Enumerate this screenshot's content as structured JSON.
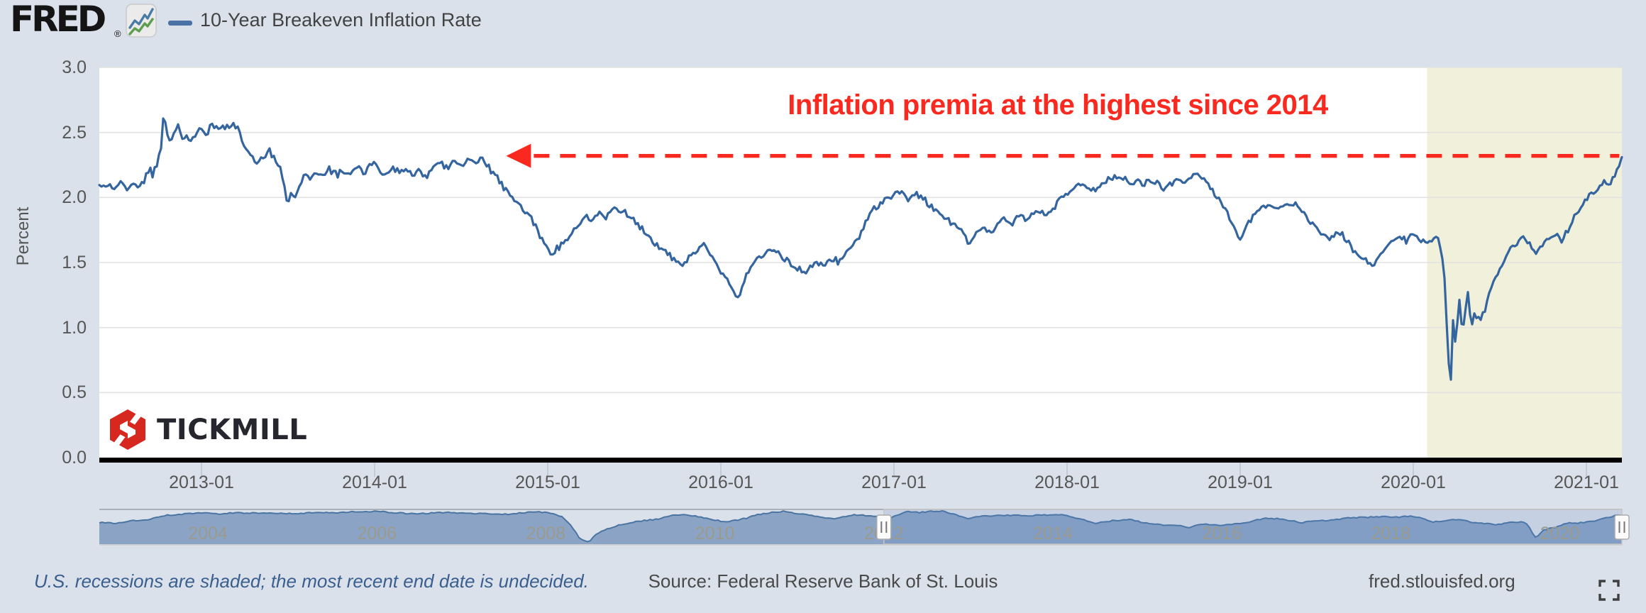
{
  "page": {
    "background": "#dae1ea"
  },
  "header": {
    "logo_text": "FRED",
    "logo_registered": "®",
    "series_legend": {
      "label": "10-Year Breakeven Inflation Rate",
      "color": "#4a72a6"
    }
  },
  "annotation": {
    "text": "Inflation premia at the highest since 2014",
    "color": "#fa291f"
  },
  "watermark": {
    "text": "TICKMILL",
    "icon_color": "#d6281e",
    "text_color": "#26262e"
  },
  "footer": {
    "recession_note": "U.S. recessions are shaded; the most recent end date is undecided.",
    "source": "Source: Federal Reserve Bank of St. Louis",
    "site": "fred.stlouisfed.org"
  },
  "chart_data": {
    "type": "line",
    "title": "10-Year Breakeven Inflation Rate",
    "ylabel": "Percent",
    "ylim": [
      0.0,
      3.0
    ],
    "y_ticks": [
      "0.0",
      "0.5",
      "1.0",
      "1.5",
      "2.0",
      "2.5",
      "3.0"
    ],
    "x_tick_years": [
      2013,
      2014,
      2015,
      2016,
      2017,
      2018,
      2019,
      2020,
      2021
    ],
    "x_tick_labels": [
      "2013-01",
      "2014-01",
      "2015-01",
      "2016-01",
      "2017-01",
      "2018-01",
      "2019-01",
      "2020-01",
      "2021-01"
    ],
    "x_range": [
      2012.41,
      2021.21
    ],
    "grid": true,
    "line_color": "#35659e",
    "recession_shading": {
      "start": 2020.08,
      "end": 2021.21,
      "color": "#f1f0da"
    },
    "reference_line": {
      "value": 2.32,
      "from": 2014.76,
      "to": 2021.19,
      "style": "dashed",
      "arrow": "left",
      "color": "#fa291f"
    },
    "points": [
      [
        2012.41,
        2.08
      ],
      [
        2012.45,
        2.1
      ],
      [
        2012.49,
        2.06
      ],
      [
        2012.53,
        2.11
      ],
      [
        2012.57,
        2.06
      ],
      [
        2012.61,
        2.12
      ],
      [
        2012.64,
        2.07
      ],
      [
        2012.67,
        2.13
      ],
      [
        2012.7,
        2.23
      ],
      [
        2012.72,
        2.17
      ],
      [
        2012.745,
        2.27
      ],
      [
        2012.765,
        2.38
      ],
      [
        2012.78,
        2.63
      ],
      [
        2012.8,
        2.5
      ],
      [
        2012.82,
        2.41
      ],
      [
        2012.845,
        2.53
      ],
      [
        2012.87,
        2.55
      ],
      [
        2012.89,
        2.42
      ],
      [
        2012.91,
        2.47
      ],
      [
        2012.935,
        2.43
      ],
      [
        2012.96,
        2.47
      ],
      [
        2012.98,
        2.5
      ],
      [
        2013.0,
        2.52
      ],
      [
        2013.03,
        2.49
      ],
      [
        2013.06,
        2.55
      ],
      [
        2013.09,
        2.52
      ],
      [
        2013.12,
        2.56
      ],
      [
        2013.15,
        2.54
      ],
      [
        2013.18,
        2.57
      ],
      [
        2013.21,
        2.52
      ],
      [
        2013.24,
        2.42
      ],
      [
        2013.27,
        2.35
      ],
      [
        2013.3,
        2.3
      ],
      [
        2013.33,
        2.27
      ],
      [
        2013.36,
        2.33
      ],
      [
        2013.39,
        2.36
      ],
      [
        2013.42,
        2.3
      ],
      [
        2013.45,
        2.23
      ],
      [
        2013.475,
        2.12
      ],
      [
        2013.5,
        1.92
      ],
      [
        2013.52,
        2.06
      ],
      [
        2013.54,
        2.0
      ],
      [
        2013.57,
        2.12
      ],
      [
        2013.6,
        2.18
      ],
      [
        2013.63,
        2.14
      ],
      [
        2013.66,
        2.2
      ],
      [
        2013.7,
        2.16
      ],
      [
        2013.74,
        2.22
      ],
      [
        2013.78,
        2.17
      ],
      [
        2013.82,
        2.21
      ],
      [
        2013.86,
        2.17
      ],
      [
        2013.9,
        2.24
      ],
      [
        2013.94,
        2.19
      ],
      [
        2013.98,
        2.26
      ],
      [
        2014.02,
        2.23
      ],
      [
        2014.06,
        2.18
      ],
      [
        2014.1,
        2.24
      ],
      [
        2014.14,
        2.19
      ],
      [
        2014.18,
        2.23
      ],
      [
        2014.22,
        2.17
      ],
      [
        2014.26,
        2.21
      ],
      [
        2014.3,
        2.16
      ],
      [
        2014.34,
        2.22
      ],
      [
        2014.38,
        2.27
      ],
      [
        2014.42,
        2.23
      ],
      [
        2014.46,
        2.28
      ],
      [
        2014.5,
        2.24
      ],
      [
        2014.54,
        2.29
      ],
      [
        2014.58,
        2.26
      ],
      [
        2014.62,
        2.3
      ],
      [
        2014.66,
        2.24
      ],
      [
        2014.7,
        2.16
      ],
      [
        2014.74,
        2.09
      ],
      [
        2014.78,
        2.03
      ],
      [
        2014.82,
        1.97
      ],
      [
        2014.86,
        1.9
      ],
      [
        2014.9,
        1.87
      ],
      [
        2014.94,
        1.74
      ],
      [
        2014.98,
        1.65
      ],
      [
        2015.02,
        1.57
      ],
      [
        2015.06,
        1.62
      ],
      [
        2015.1,
        1.66
      ],
      [
        2015.14,
        1.72
      ],
      [
        2015.18,
        1.8
      ],
      [
        2015.22,
        1.86
      ],
      [
        2015.26,
        1.83
      ],
      [
        2015.3,
        1.89
      ],
      [
        2015.34,
        1.86
      ],
      [
        2015.38,
        1.92
      ],
      [
        2015.42,
        1.89
      ],
      [
        2015.46,
        1.87
      ],
      [
        2015.5,
        1.82
      ],
      [
        2015.54,
        1.76
      ],
      [
        2015.58,
        1.71
      ],
      [
        2015.62,
        1.64
      ],
      [
        2015.66,
        1.6
      ],
      [
        2015.7,
        1.56
      ],
      [
        2015.74,
        1.5
      ],
      [
        2015.78,
        1.47
      ],
      [
        2015.82,
        1.53
      ],
      [
        2015.86,
        1.58
      ],
      [
        2015.9,
        1.64
      ],
      [
        2015.94,
        1.57
      ],
      [
        2015.98,
        1.47
      ],
      [
        2016.02,
        1.4
      ],
      [
        2016.06,
        1.3
      ],
      [
        2016.1,
        1.21
      ],
      [
        2016.13,
        1.33
      ],
      [
        2016.16,
        1.44
      ],
      [
        2016.2,
        1.51
      ],
      [
        2016.24,
        1.56
      ],
      [
        2016.28,
        1.61
      ],
      [
        2016.32,
        1.57
      ],
      [
        2016.36,
        1.53
      ],
      [
        2016.4,
        1.5
      ],
      [
        2016.44,
        1.46
      ],
      [
        2016.48,
        1.42
      ],
      [
        2016.52,
        1.47
      ],
      [
        2016.56,
        1.51
      ],
      [
        2016.6,
        1.48
      ],
      [
        2016.64,
        1.53
      ],
      [
        2016.68,
        1.5
      ],
      [
        2016.72,
        1.56
      ],
      [
        2016.76,
        1.63
      ],
      [
        2016.8,
        1.7
      ],
      [
        2016.84,
        1.83
      ],
      [
        2016.88,
        1.9
      ],
      [
        2016.92,
        1.96
      ],
      [
        2016.96,
        1.99
      ],
      [
        2017.0,
        2.01
      ],
      [
        2017.04,
        2.05
      ],
      [
        2017.08,
        1.99
      ],
      [
        2017.12,
        2.03
      ],
      [
        2017.16,
        1.99
      ],
      [
        2017.2,
        1.95
      ],
      [
        2017.24,
        1.9
      ],
      [
        2017.28,
        1.86
      ],
      [
        2017.32,
        1.82
      ],
      [
        2017.36,
        1.77
      ],
      [
        2017.4,
        1.72
      ],
      [
        2017.44,
        1.64
      ],
      [
        2017.48,
        1.73
      ],
      [
        2017.52,
        1.77
      ],
      [
        2017.56,
        1.73
      ],
      [
        2017.6,
        1.79
      ],
      [
        2017.64,
        1.83
      ],
      [
        2017.68,
        1.8
      ],
      [
        2017.72,
        1.85
      ],
      [
        2017.76,
        1.82
      ],
      [
        2017.8,
        1.87
      ],
      [
        2017.84,
        1.9
      ],
      [
        2017.88,
        1.87
      ],
      [
        2017.92,
        1.92
      ],
      [
        2017.96,
        1.97
      ],
      [
        2018.0,
        2.03
      ],
      [
        2018.04,
        2.08
      ],
      [
        2018.08,
        2.12
      ],
      [
        2018.12,
        2.07
      ],
      [
        2018.16,
        2.04
      ],
      [
        2018.2,
        2.09
      ],
      [
        2018.24,
        2.14
      ],
      [
        2018.28,
        2.18
      ],
      [
        2018.32,
        2.14
      ],
      [
        2018.36,
        2.11
      ],
      [
        2018.4,
        2.13
      ],
      [
        2018.44,
        2.09
      ],
      [
        2018.48,
        2.12
      ],
      [
        2018.52,
        2.11
      ],
      [
        2018.56,
        2.08
      ],
      [
        2018.6,
        2.11
      ],
      [
        2018.64,
        2.14
      ],
      [
        2018.68,
        2.12
      ],
      [
        2018.72,
        2.16
      ],
      [
        2018.76,
        2.17
      ],
      [
        2018.8,
        2.11
      ],
      [
        2018.84,
        2.06
      ],
      [
        2018.88,
        1.98
      ],
      [
        2018.92,
        1.9
      ],
      [
        2018.96,
        1.78
      ],
      [
        2019.0,
        1.67
      ],
      [
        2019.04,
        1.78
      ],
      [
        2019.08,
        1.86
      ],
      [
        2019.12,
        1.91
      ],
      [
        2019.16,
        1.94
      ],
      [
        2019.2,
        1.91
      ],
      [
        2019.24,
        1.95
      ],
      [
        2019.28,
        1.92
      ],
      [
        2019.32,
        1.96
      ],
      [
        2019.36,
        1.89
      ],
      [
        2019.4,
        1.82
      ],
      [
        2019.44,
        1.76
      ],
      [
        2019.48,
        1.7
      ],
      [
        2019.52,
        1.66
      ],
      [
        2019.56,
        1.73
      ],
      [
        2019.6,
        1.7
      ],
      [
        2019.64,
        1.62
      ],
      [
        2019.68,
        1.55
      ],
      [
        2019.72,
        1.52
      ],
      [
        2019.76,
        1.49
      ],
      [
        2019.8,
        1.54
      ],
      [
        2019.84,
        1.6
      ],
      [
        2019.88,
        1.66
      ],
      [
        2019.92,
        1.71
      ],
      [
        2019.96,
        1.67
      ],
      [
        2020.0,
        1.72
      ],
      [
        2020.04,
        1.68
      ],
      [
        2020.08,
        1.64
      ],
      [
        2020.11,
        1.68
      ],
      [
        2020.14,
        1.71
      ],
      [
        2020.16,
        1.58
      ],
      [
        2020.18,
        1.4
      ],
      [
        2020.2,
        0.85
      ],
      [
        2020.215,
        0.49
      ],
      [
        2020.23,
        1.08
      ],
      [
        2020.245,
        0.87
      ],
      [
        2020.265,
        1.22
      ],
      [
        2020.285,
        0.94
      ],
      [
        2020.315,
        1.28
      ],
      [
        2020.335,
        1.01
      ],
      [
        2020.355,
        1.11
      ],
      [
        2020.38,
        1.06
      ],
      [
        2020.41,
        1.13
      ],
      [
        2020.44,
        1.27
      ],
      [
        2020.47,
        1.38
      ],
      [
        2020.51,
        1.48
      ],
      [
        2020.55,
        1.57
      ],
      [
        2020.59,
        1.64
      ],
      [
        2020.63,
        1.7
      ],
      [
        2020.67,
        1.63
      ],
      [
        2020.71,
        1.58
      ],
      [
        2020.75,
        1.65
      ],
      [
        2020.79,
        1.7
      ],
      [
        2020.83,
        1.72
      ],
      [
        2020.86,
        1.65
      ],
      [
        2020.9,
        1.77
      ],
      [
        2020.94,
        1.87
      ],
      [
        2020.98,
        1.95
      ],
      [
        2021.02,
        2.02
      ],
      [
        2021.06,
        2.06
      ],
      [
        2021.1,
        2.12
      ],
      [
        2021.14,
        2.1
      ],
      [
        2021.18,
        2.21
      ],
      [
        2021.21,
        2.31
      ]
    ],
    "navigator": {
      "x_range": [
        2003.2,
        2021.24
      ],
      "selected_range": [
        2012.5,
        2021.24
      ],
      "year_labels": [
        2004,
        2006,
        2008,
        2010,
        2012,
        2014,
        2016,
        2018,
        2020
      ],
      "area_color": "#8ba4c5",
      "line_color": "#4a74a2",
      "selection_tint": "rgba(90,130,195,0.16)",
      "points": [
        [
          2003.2,
          1.7
        ],
        [
          2003.4,
          1.62
        ],
        [
          2003.6,
          1.8
        ],
        [
          2003.8,
          1.92
        ],
        [
          2004.0,
          2.22
        ],
        [
          2004.2,
          2.32
        ],
        [
          2004.4,
          2.45
        ],
        [
          2004.6,
          2.35
        ],
        [
          2004.8,
          2.42
        ],
        [
          2005.0,
          2.4
        ],
        [
          2005.25,
          2.42
        ],
        [
          2005.5,
          2.35
        ],
        [
          2005.75,
          2.45
        ],
        [
          2006.0,
          2.42
        ],
        [
          2006.25,
          2.52
        ],
        [
          2006.5,
          2.55
        ],
        [
          2006.75,
          2.42
        ],
        [
          2007.0,
          2.36
        ],
        [
          2007.25,
          2.45
        ],
        [
          2007.5,
          2.42
        ],
        [
          2007.75,
          2.38
        ],
        [
          2008.0,
          2.3
        ],
        [
          2008.2,
          2.42
        ],
        [
          2008.4,
          2.5
        ],
        [
          2008.55,
          2.42
        ],
        [
          2008.7,
          2.1
        ],
        [
          2008.8,
          1.4
        ],
        [
          2008.9,
          0.45
        ],
        [
          2009.0,
          0.12
        ],
        [
          2009.08,
          0.7
        ],
        [
          2009.16,
          1.0
        ],
        [
          2009.25,
          1.25
        ],
        [
          2009.4,
          1.55
        ],
        [
          2009.6,
          1.78
        ],
        [
          2009.8,
          1.92
        ],
        [
          2010.0,
          2.25
        ],
        [
          2010.15,
          2.3
        ],
        [
          2010.3,
          2.15
        ],
        [
          2010.45,
          1.95
        ],
        [
          2010.6,
          1.75
        ],
        [
          2010.75,
          1.85
        ],
        [
          2010.9,
          2.05
        ],
        [
          2011.0,
          2.3
        ],
        [
          2011.15,
          2.42
        ],
        [
          2011.3,
          2.55
        ],
        [
          2011.45,
          2.4
        ],
        [
          2011.6,
          2.3
        ],
        [
          2011.75,
          2.05
        ],
        [
          2011.9,
          1.95
        ],
        [
          2012.0,
          2.1
        ],
        [
          2012.15,
          2.28
        ],
        [
          2012.3,
          2.2
        ],
        [
          2012.45,
          2.1
        ],
        [
          2012.6,
          2.08
        ],
        [
          2012.78,
          2.55
        ],
        [
          2012.9,
          2.45
        ],
        [
          2013.0,
          2.52
        ],
        [
          2013.18,
          2.56
        ],
        [
          2013.35,
          2.3
        ],
        [
          2013.5,
          1.95
        ],
        [
          2013.65,
          2.18
        ],
        [
          2013.8,
          2.2
        ],
        [
          2014.0,
          2.25
        ],
        [
          2014.2,
          2.2
        ],
        [
          2014.4,
          2.26
        ],
        [
          2014.6,
          2.27
        ],
        [
          2014.8,
          2.0
        ],
        [
          2015.0,
          1.6
        ],
        [
          2015.2,
          1.82
        ],
        [
          2015.4,
          1.9
        ],
        [
          2015.6,
          1.66
        ],
        [
          2015.8,
          1.5
        ],
        [
          2016.0,
          1.45
        ],
        [
          2016.1,
          1.22
        ],
        [
          2016.25,
          1.56
        ],
        [
          2016.45,
          1.47
        ],
        [
          2016.6,
          1.5
        ],
        [
          2016.8,
          1.7
        ],
        [
          2017.0,
          2.01
        ],
        [
          2017.2,
          1.96
        ],
        [
          2017.44,
          1.67
        ],
        [
          2017.6,
          1.79
        ],
        [
          2017.8,
          1.87
        ],
        [
          2018.0,
          2.03
        ],
        [
          2018.2,
          2.09
        ],
        [
          2018.4,
          2.12
        ],
        [
          2018.6,
          2.11
        ],
        [
          2018.76,
          2.17
        ],
        [
          2018.9,
          1.94
        ],
        [
          2019.0,
          1.71
        ],
        [
          2019.25,
          1.94
        ],
        [
          2019.5,
          1.66
        ],
        [
          2019.75,
          1.5
        ],
        [
          2019.9,
          1.7
        ],
        [
          2020.0,
          1.72
        ],
        [
          2020.1,
          1.66
        ],
        [
          2020.215,
          0.49
        ],
        [
          2020.3,
          1.1
        ],
        [
          2020.45,
          1.33
        ],
        [
          2020.6,
          1.66
        ],
        [
          2020.75,
          1.65
        ],
        [
          2020.9,
          1.77
        ],
        [
          2021.0,
          1.98
        ],
        [
          2021.1,
          2.12
        ],
        [
          2021.24,
          2.31
        ]
      ]
    }
  }
}
